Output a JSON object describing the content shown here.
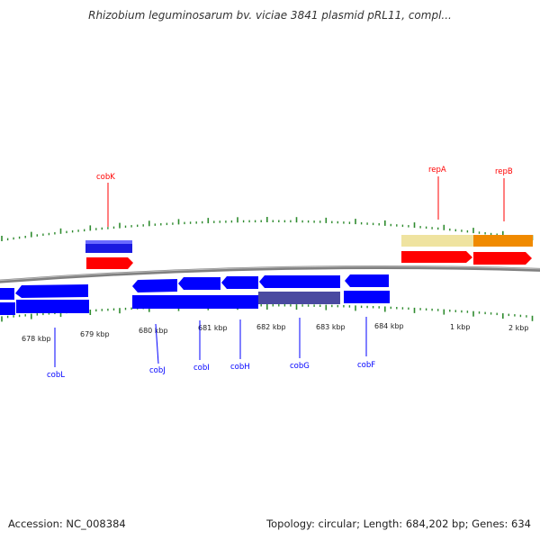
{
  "title": "Rhizobium leguminosarum bv. viciae 3841 plasmid pRL11, compl...",
  "footer": {
    "accession": "Accession: NC_008384",
    "summary": "Topology: circular; Length: 684,202 bp; Genes: 634"
  },
  "scale": {
    "tick_labels": [
      "678 kbp",
      "679 kbp",
      "680 kbp",
      "681 kbp",
      "682 kbp",
      "683 kbp",
      "684 kbp",
      "1 kbp",
      "2 kbp"
    ]
  },
  "genes": [
    {
      "name": "cobK",
      "strand": "forward",
      "color": "#ff0000"
    },
    {
      "name": "repA",
      "strand": "forward",
      "color": "#ff0000"
    },
    {
      "name": "repB",
      "strand": "forward",
      "color": "#ff0000"
    },
    {
      "name": "cobL",
      "strand": "reverse",
      "color": "#0000ff"
    },
    {
      "name": "cobJ",
      "strand": "reverse",
      "color": "#0000ff"
    },
    {
      "name": "cobI",
      "strand": "reverse",
      "color": "#0000ff"
    },
    {
      "name": "cobH",
      "strand": "reverse",
      "color": "#0000ff"
    },
    {
      "name": "cobG",
      "strand": "reverse",
      "color": "#0000ff"
    },
    {
      "name": "cobF",
      "strand": "reverse",
      "color": "#0000ff"
    }
  ],
  "colors": {
    "forward_gene": "#ff0000",
    "reverse_gene": "#0000ff",
    "reverse_gene_dark": "#4a4aa0",
    "gene_block_forward": "#1a1ae0",
    "rep_block_light": "#efe3a0",
    "rep_block_orange": "#f08a00",
    "ticks": "#2e8b2e",
    "backbone": "#888888"
  }
}
